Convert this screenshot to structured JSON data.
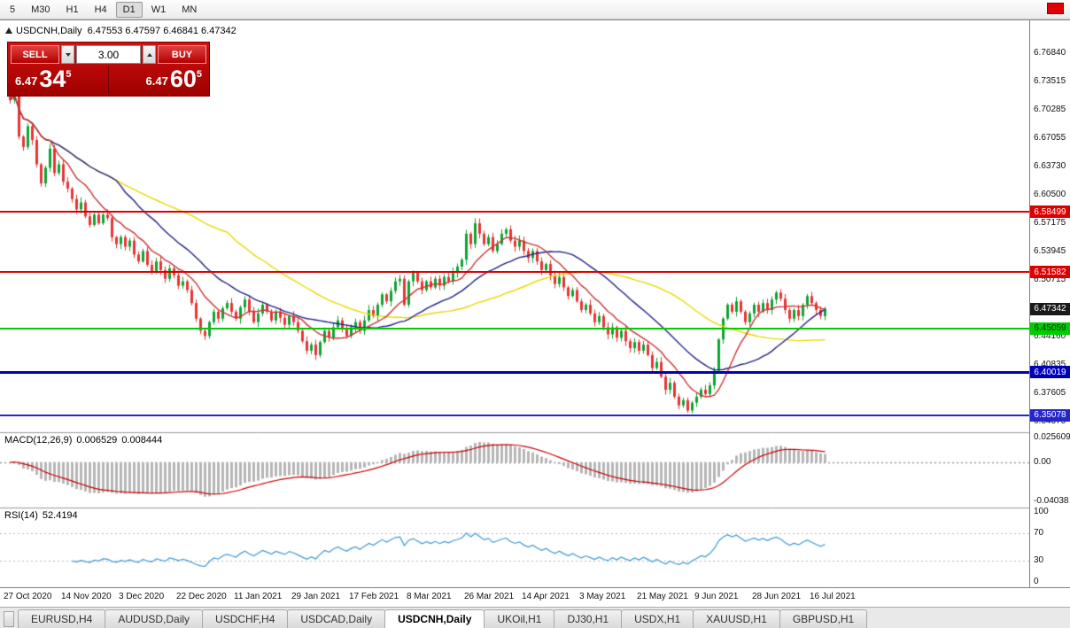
{
  "toolbar": {
    "timeframes": [
      "5",
      "M30",
      "H1",
      "H4",
      "D1",
      "W1",
      "MN"
    ],
    "active": "D1"
  },
  "chart": {
    "title": "USDCNH,Daily",
    "ohlc_text": "6.47553 6.47597 6.46841 6.47342",
    "current_price": "6.47342",
    "price_axis_labels": [
      "6.76840",
      "6.73515",
      "6.70285",
      "6.67055",
      "6.63730",
      "6.60500",
      "6.57175",
      "6.53945",
      "6.50715",
      "6.44160",
      "6.40835",
      "6.37605",
      "6.34375"
    ],
    "levels": [
      {
        "value": "6.58499",
        "color": "#dd0000",
        "text_color": "#ffffff",
        "thickness": 2
      },
      {
        "value": "6.51582",
        "color": "#dd0000",
        "text_color": "#ffffff",
        "thickness": 2
      },
      {
        "value": "6.45059",
        "color": "#00cc00",
        "text_color": "#003300",
        "thickness": 2
      },
      {
        "value": "6.40019",
        "color": "#0000bb",
        "text_color": "#ffffff",
        "thickness": 3
      },
      {
        "value": "6.35078",
        "color": "#2525cc",
        "text_color": "#ffffff",
        "thickness": 2
      }
    ]
  },
  "trade": {
    "sell_label": "SELL",
    "buy_label": "BUY",
    "volume": "3.00",
    "bid": {
      "small": "6.47",
      "big": "34",
      "sup": "5"
    },
    "ask": {
      "small": "6.47",
      "big": "60",
      "sup": "5"
    }
  },
  "macd": {
    "label": "MACD(12,26,9)",
    "value_main": "0.006529",
    "value_signal": "0.008444",
    "axis_labels": [
      "0.025609",
      "0.00",
      "-0.04038"
    ]
  },
  "rsi": {
    "label": "RSI(14)",
    "value": "52.4194",
    "axis_labels": [
      "100",
      "70",
      "30",
      "0"
    ]
  },
  "tabs": {
    "items": [
      "EURUSD,H4",
      "AUDUSD,Daily",
      "USDCHF,H4",
      "USDCAD,Daily",
      "USDCNH,Daily",
      "UKOil,H1",
      "DJ30,H1",
      "USDX,H1",
      "XAUUSD,H1",
      "GBPUSD,H1"
    ],
    "active_index": 4
  },
  "chart_data": {
    "type": "candlestick",
    "symbol": "USDCNH",
    "timeframe": "Daily",
    "last_ohlc": {
      "open": 6.47553,
      "high": 6.47597,
      "low": 6.46841,
      "close": 6.47342
    },
    "price_range": {
      "top": 6.806,
      "bottom": 6.331
    },
    "x_label_step": 13,
    "x_labels": [
      "27 Oct 2020",
      "14 Nov 2020",
      "3 Dec 2020",
      "22 Dec 2020",
      "11 Jan 2021",
      "29 Jan 2021",
      "17 Feb 2021",
      "8 Mar 2021",
      "26 Mar 2021",
      "14 Apr 2021",
      "3 May 2021",
      "21 May 2021",
      "9 Jun 2021",
      "28 Jun 2021",
      "16 Jul 2021"
    ],
    "closes": [
      6.714,
      6.725,
      6.672,
      6.66,
      6.684,
      6.668,
      6.64,
      6.618,
      6.636,
      6.658,
      6.63,
      6.64,
      6.62,
      6.612,
      6.6,
      6.588,
      6.596,
      6.58,
      6.57,
      6.582,
      6.572,
      6.582,
      6.578,
      6.556,
      6.548,
      6.556,
      6.545,
      6.552,
      6.536,
      6.528,
      6.54,
      6.524,
      6.516,
      6.528,
      6.518,
      6.508,
      6.52,
      6.512,
      6.5,
      6.505,
      6.495,
      6.48,
      6.462,
      6.448,
      6.442,
      6.458,
      6.47,
      6.462,
      6.474,
      6.48,
      6.47,
      6.462,
      6.475,
      6.484,
      6.47,
      6.458,
      6.468,
      6.478,
      6.47,
      6.46,
      6.47,
      6.463,
      6.455,
      6.465,
      6.458,
      6.448,
      6.436,
      6.425,
      6.432,
      6.42,
      6.435,
      6.448,
      6.44,
      6.452,
      6.46,
      6.45,
      6.442,
      6.452,
      6.458,
      6.448,
      6.46,
      6.472,
      6.465,
      6.478,
      6.49,
      6.482,
      6.494,
      6.505,
      6.508,
      6.478,
      6.505,
      6.515,
      6.505,
      6.495,
      6.505,
      6.498,
      6.508,
      6.5,
      6.51,
      6.505,
      6.515,
      6.522,
      6.53,
      6.56,
      6.548,
      6.572,
      6.56,
      6.548,
      6.556,
      6.54,
      6.548,
      6.56,
      6.565,
      6.552,
      6.545,
      6.552,
      6.54,
      6.532,
      6.54,
      6.528,
      6.518,
      6.525,
      6.512,
      6.502,
      6.51,
      6.498,
      6.488,
      6.495,
      6.482,
      6.472,
      6.478,
      6.468,
      6.458,
      6.465,
      6.452,
      6.444,
      6.452,
      6.44,
      6.448,
      6.436,
      6.428,
      6.435,
      6.425,
      6.432,
      6.42,
      6.405,
      6.412,
      6.395,
      6.38,
      6.388,
      6.372,
      6.362,
      6.368,
      6.356,
      6.365,
      6.372,
      6.38,
      6.375,
      6.385,
      6.402,
      6.438,
      6.462,
      6.478,
      6.47,
      6.482,
      6.47,
      6.458,
      6.468,
      6.478,
      6.47,
      6.48,
      6.472,
      6.484,
      6.492,
      6.485,
      6.472,
      6.462,
      6.472,
      6.465,
      6.478,
      6.488,
      6.48,
      6.472,
      6.465,
      6.4734
    ],
    "levels": [
      6.58499,
      6.51582,
      6.45059,
      6.40019,
      6.35078
    ],
    "moving_averages": [
      {
        "period": 10,
        "color": "#cc3333"
      },
      {
        "period": 25,
        "color": "#232388"
      },
      {
        "period": 50,
        "color": "#ecd800"
      }
    ],
    "macd": {
      "fast": 12,
      "slow": 26,
      "signal": 9,
      "range_max": 0.025609,
      "range_min": -0.04038,
      "histogram_color": "#b6b6b6",
      "signal_color": "#cc0000"
    },
    "rsi": {
      "period": 14,
      "levels": [
        70,
        30
      ],
      "line_color": "#3e9ad6",
      "last_value": 52.4194
    },
    "candle_up_color": "#0ea432",
    "candle_down_color": "#e93434"
  }
}
